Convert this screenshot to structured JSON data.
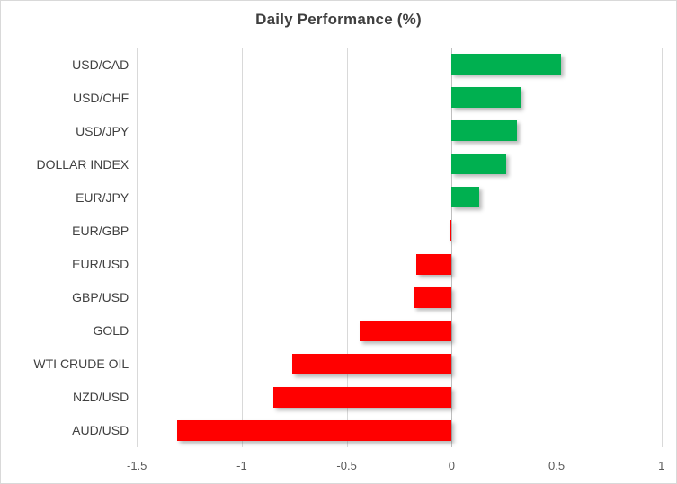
{
  "chart_data": {
    "type": "bar",
    "orientation": "horizontal",
    "title": "Daily Performance (%)",
    "categories": [
      "USD/CAD",
      "USD/CHF",
      "USD/JPY",
      "DOLLAR INDEX",
      "EUR/JPY",
      "EUR/GBP",
      "EUR/USD",
      "GBP/USD",
      "GOLD",
      "WTI CRUDE OIL",
      "NZD/USD",
      "AUD/USD"
    ],
    "values": [
      0.52,
      0.33,
      0.31,
      0.26,
      0.13,
      -0.01,
      -0.17,
      -0.18,
      -0.44,
      -0.76,
      -0.85,
      -1.31
    ],
    "xlim": [
      -1.5,
      1.0
    ],
    "xticks": [
      -1.5,
      -1,
      -0.5,
      0,
      0.5,
      1
    ],
    "xtick_labels": [
      "-1.5",
      "-1",
      "-0.5",
      "0",
      "0.5",
      "1"
    ],
    "grid": true,
    "legend": false,
    "colors": {
      "positive": "#00B050",
      "negative": "#FF0000",
      "gridline": "#D9D9D9",
      "zero_axis": "#BFBFBF",
      "title_text": "#3F3F3F",
      "category_text": "#404040",
      "tick_text": "#595959",
      "border": "#D9D9D9",
      "background": "#FFFFFF"
    }
  }
}
